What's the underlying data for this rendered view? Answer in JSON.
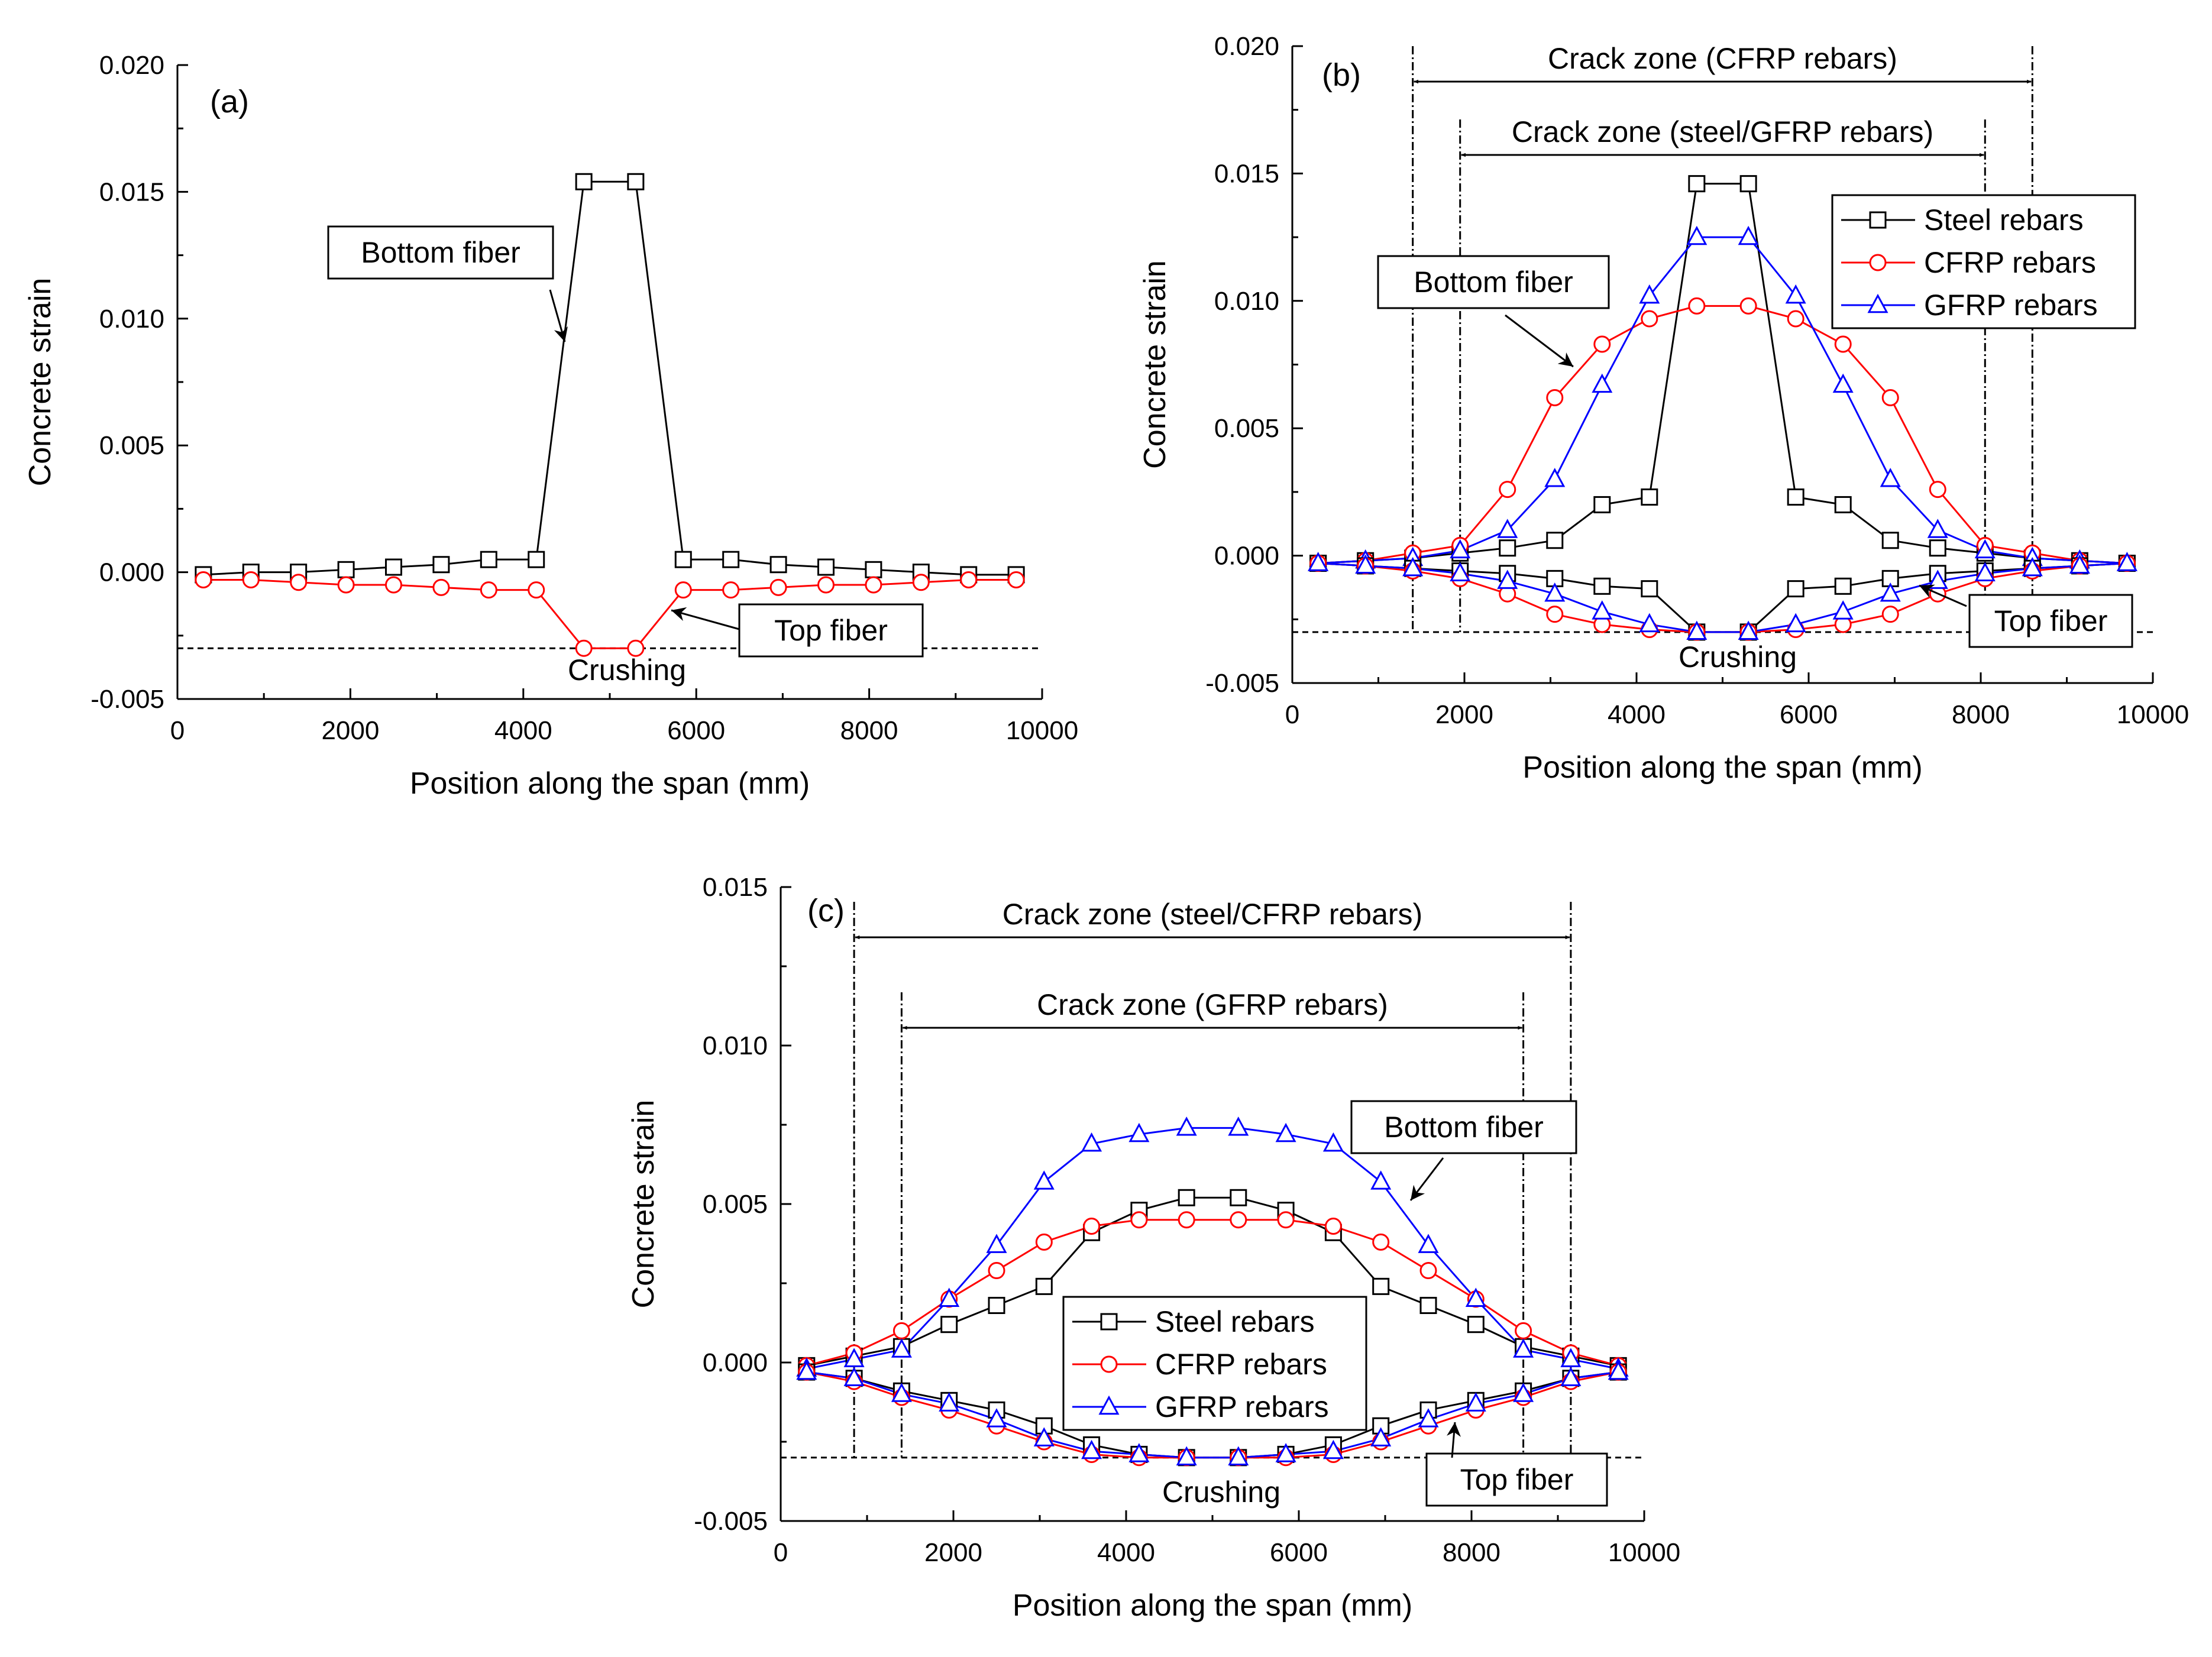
{
  "chart_data": [
    {
      "panel_label": "(a)",
      "type": "line",
      "xlabel": "Position along the span (mm)",
      "ylabel": "Concrete strain",
      "xlim": [
        0,
        10000
      ],
      "ylim": [
        -0.005,
        0.02
      ],
      "xticks": [
        "0",
        "2000",
        "4000",
        "6000",
        "8000",
        "10000"
      ],
      "yticks": [
        "-0.005",
        "0.000",
        "0.005",
        "0.010",
        "0.015",
        "0.020"
      ],
      "crushing_strain": -0.003,
      "crushing_label": "Crushing",
      "x": [
        300,
        850,
        1400,
        1950,
        2500,
        3050,
        3600,
        4150,
        4700,
        5300,
        5850,
        6400,
        6950,
        7500,
        8050,
        8600,
        9150,
        9700
      ],
      "series": [
        {
          "name": "Bottom fiber",
          "color": "#000000",
          "marker": "square",
          "values": [
            -0.0001,
            0.0,
            0.0,
            0.0001,
            0.0002,
            0.0003,
            0.0005,
            0.0005,
            0.0154,
            0.0154,
            0.0005,
            0.0005,
            0.0003,
            0.0002,
            0.0001,
            0.0,
            -0.0001,
            -0.0001
          ]
        },
        {
          "name": "Top fiber",
          "color": "#ff0000",
          "marker": "circle",
          "values": [
            -0.0003,
            -0.0003,
            -0.0004,
            -0.0005,
            -0.0005,
            -0.0006,
            -0.0007,
            -0.0007,
            -0.003,
            -0.003,
            -0.0007,
            -0.0007,
            -0.0006,
            -0.0005,
            -0.0005,
            -0.0004,
            -0.0003,
            -0.0003
          ]
        }
      ],
      "annotations": [
        "Bottom fiber",
        "Top fiber"
      ]
    },
    {
      "panel_label": "(b)",
      "type": "line",
      "xlabel": "Position along the span (mm)",
      "ylabel": "Concrete strain",
      "xlim": [
        0,
        10000
      ],
      "ylim": [
        -0.005,
        0.02
      ],
      "xticks": [
        "0",
        "2000",
        "4000",
        "6000",
        "8000",
        "10000"
      ],
      "yticks": [
        "-0.005",
        "0.000",
        "0.005",
        "0.010",
        "0.015",
        "0.020"
      ],
      "crushing_strain": -0.003,
      "crushing_label": "Crushing",
      "crack_zones": [
        {
          "label": "Crack zone (CFRP rebars)",
          "x0": 1400,
          "x1": 8600
        },
        {
          "label": "Crack zone (steel/GFRP rebars)",
          "x0": 1950,
          "x1": 8050
        }
      ],
      "x": [
        300,
        850,
        1400,
        1950,
        2500,
        3050,
        3600,
        4150,
        4700,
        5300,
        5850,
        6400,
        6950,
        7500,
        8050,
        8600,
        9150,
        9700
      ],
      "legend": [
        "Steel rebars",
        "CFRP rebars",
        "GFRP rebars"
      ],
      "series": [
        {
          "name": "Steel rebars",
          "fiber": "bottom",
          "color": "#000000",
          "marker": "square",
          "values": [
            -0.0003,
            -0.0002,
            -0.0001,
            0.0001,
            0.0003,
            0.0006,
            0.002,
            0.0023,
            0.0146,
            0.0146,
            0.0023,
            0.002,
            0.0006,
            0.0003,
            0.0001,
            -0.0001,
            -0.0002,
            -0.0003
          ]
        },
        {
          "name": "CFRP rebars",
          "fiber": "bottom",
          "color": "#ff0000",
          "marker": "circle",
          "values": [
            -0.0003,
            -0.0002,
            0.0001,
            0.0004,
            0.0026,
            0.0062,
            0.0083,
            0.0093,
            0.0098,
            0.0098,
            0.0093,
            0.0083,
            0.0062,
            0.0026,
            0.0004,
            0.0001,
            -0.0002,
            -0.0003
          ]
        },
        {
          "name": "GFRP rebars",
          "fiber": "bottom",
          "color": "#0000ff",
          "marker": "triangle",
          "values": [
            -0.0003,
            -0.0002,
            -0.0001,
            0.0002,
            0.001,
            0.003,
            0.0067,
            0.0102,
            0.0125,
            0.0125,
            0.0102,
            0.0067,
            0.003,
            0.001,
            0.0002,
            -0.0001,
            -0.0002,
            -0.0003
          ]
        },
        {
          "name": "Steel rebars",
          "fiber": "top",
          "color": "#000000",
          "marker": "square",
          "values": [
            -0.0003,
            -0.0004,
            -0.0005,
            -0.0006,
            -0.0007,
            -0.0009,
            -0.0012,
            -0.0013,
            -0.003,
            -0.003,
            -0.0013,
            -0.0012,
            -0.0009,
            -0.0007,
            -0.0006,
            -0.0005,
            -0.0004,
            -0.0003
          ]
        },
        {
          "name": "CFRP rebars",
          "fiber": "top",
          "color": "#ff0000",
          "marker": "circle",
          "values": [
            -0.0003,
            -0.0004,
            -0.0006,
            -0.0009,
            -0.0015,
            -0.0023,
            -0.0027,
            -0.0029,
            -0.003,
            -0.003,
            -0.0029,
            -0.0027,
            -0.0023,
            -0.0015,
            -0.0009,
            -0.0006,
            -0.0004,
            -0.0003
          ]
        },
        {
          "name": "GFRP rebars",
          "fiber": "top",
          "color": "#0000ff",
          "marker": "triangle",
          "values": [
            -0.0003,
            -0.0004,
            -0.0005,
            -0.0007,
            -0.001,
            -0.0015,
            -0.0022,
            -0.0027,
            -0.003,
            -0.003,
            -0.0027,
            -0.0022,
            -0.0015,
            -0.001,
            -0.0007,
            -0.0005,
            -0.0004,
            -0.0003
          ]
        }
      ],
      "annotations": [
        "Bottom fiber",
        "Top fiber"
      ]
    },
    {
      "panel_label": "(c)",
      "type": "line",
      "xlabel": "Position along the span (mm)",
      "ylabel": "Concrete strain",
      "xlim": [
        0,
        10000
      ],
      "ylim": [
        -0.005,
        0.015
      ],
      "xticks": [
        "0",
        "2000",
        "4000",
        "6000",
        "8000",
        "10000"
      ],
      "yticks": [
        "-0.005",
        "0.000",
        "0.005",
        "0.010",
        "0.015"
      ],
      "crushing_strain": -0.003,
      "crushing_label": "Crushing",
      "crack_zones": [
        {
          "label": "Crack zone (steel/CFRP rebars)",
          "x0": 850,
          "x1": 9150
        },
        {
          "label": "Crack zone (GFRP rebars)",
          "x0": 1400,
          "x1": 8600
        }
      ],
      "x": [
        300,
        850,
        1400,
        1950,
        2500,
        3050,
        3600,
        4150,
        4700,
        5300,
        5850,
        6400,
        6950,
        7500,
        8050,
        8600,
        9150,
        9700
      ],
      "legend": [
        "Steel rebars",
        "CFRP rebars",
        "GFRP rebars"
      ],
      "series": [
        {
          "name": "Steel rebars",
          "fiber": "bottom",
          "color": "#000000",
          "marker": "square",
          "values": [
            -0.0001,
            0.0002,
            0.0005,
            0.0012,
            0.0018,
            0.0024,
            0.0041,
            0.0048,
            0.0052,
            0.0052,
            0.0048,
            0.0041,
            0.0024,
            0.0018,
            0.0012,
            0.0005,
            0.0002,
            -0.0001
          ]
        },
        {
          "name": "CFRP rebars",
          "fiber": "bottom",
          "color": "#ff0000",
          "marker": "circle",
          "values": [
            -0.0001,
            0.0003,
            0.001,
            0.002,
            0.0029,
            0.0038,
            0.0043,
            0.0045,
            0.0045,
            0.0045,
            0.0045,
            0.0043,
            0.0038,
            0.0029,
            0.002,
            0.001,
            0.0003,
            -0.0001
          ]
        },
        {
          "name": "GFRP rebars",
          "fiber": "bottom",
          "color": "#0000ff",
          "marker": "triangle",
          "values": [
            -0.0002,
            0.0001,
            0.0004,
            0.002,
            0.0037,
            0.0057,
            0.0069,
            0.0072,
            0.0074,
            0.0074,
            0.0072,
            0.0069,
            0.0057,
            0.0037,
            0.002,
            0.0004,
            0.0001,
            -0.0002
          ]
        },
        {
          "name": "Steel rebars",
          "fiber": "top",
          "color": "#000000",
          "marker": "square",
          "values": [
            -0.0003,
            -0.0005,
            -0.0009,
            -0.0012,
            -0.0015,
            -0.002,
            -0.0026,
            -0.0029,
            -0.003,
            -0.003,
            -0.0029,
            -0.0026,
            -0.002,
            -0.0015,
            -0.0012,
            -0.0009,
            -0.0005,
            -0.0003
          ]
        },
        {
          "name": "CFRP rebars",
          "fiber": "top",
          "color": "#ff0000",
          "marker": "circle",
          "values": [
            -0.0003,
            -0.0006,
            -0.0011,
            -0.0015,
            -0.002,
            -0.0025,
            -0.0029,
            -0.003,
            -0.003,
            -0.003,
            -0.003,
            -0.0029,
            -0.0025,
            -0.002,
            -0.0015,
            -0.0011,
            -0.0006,
            -0.0003
          ]
        },
        {
          "name": "GFRP rebars",
          "fiber": "top",
          "color": "#0000ff",
          "marker": "triangle",
          "values": [
            -0.0003,
            -0.0005,
            -0.001,
            -0.0013,
            -0.0018,
            -0.0024,
            -0.0028,
            -0.0029,
            -0.003,
            -0.003,
            -0.0029,
            -0.0028,
            -0.0024,
            -0.0018,
            -0.0013,
            -0.001,
            -0.0005,
            -0.0003
          ]
        }
      ],
      "annotations": [
        "Bottom fiber",
        "Top fiber"
      ]
    }
  ]
}
